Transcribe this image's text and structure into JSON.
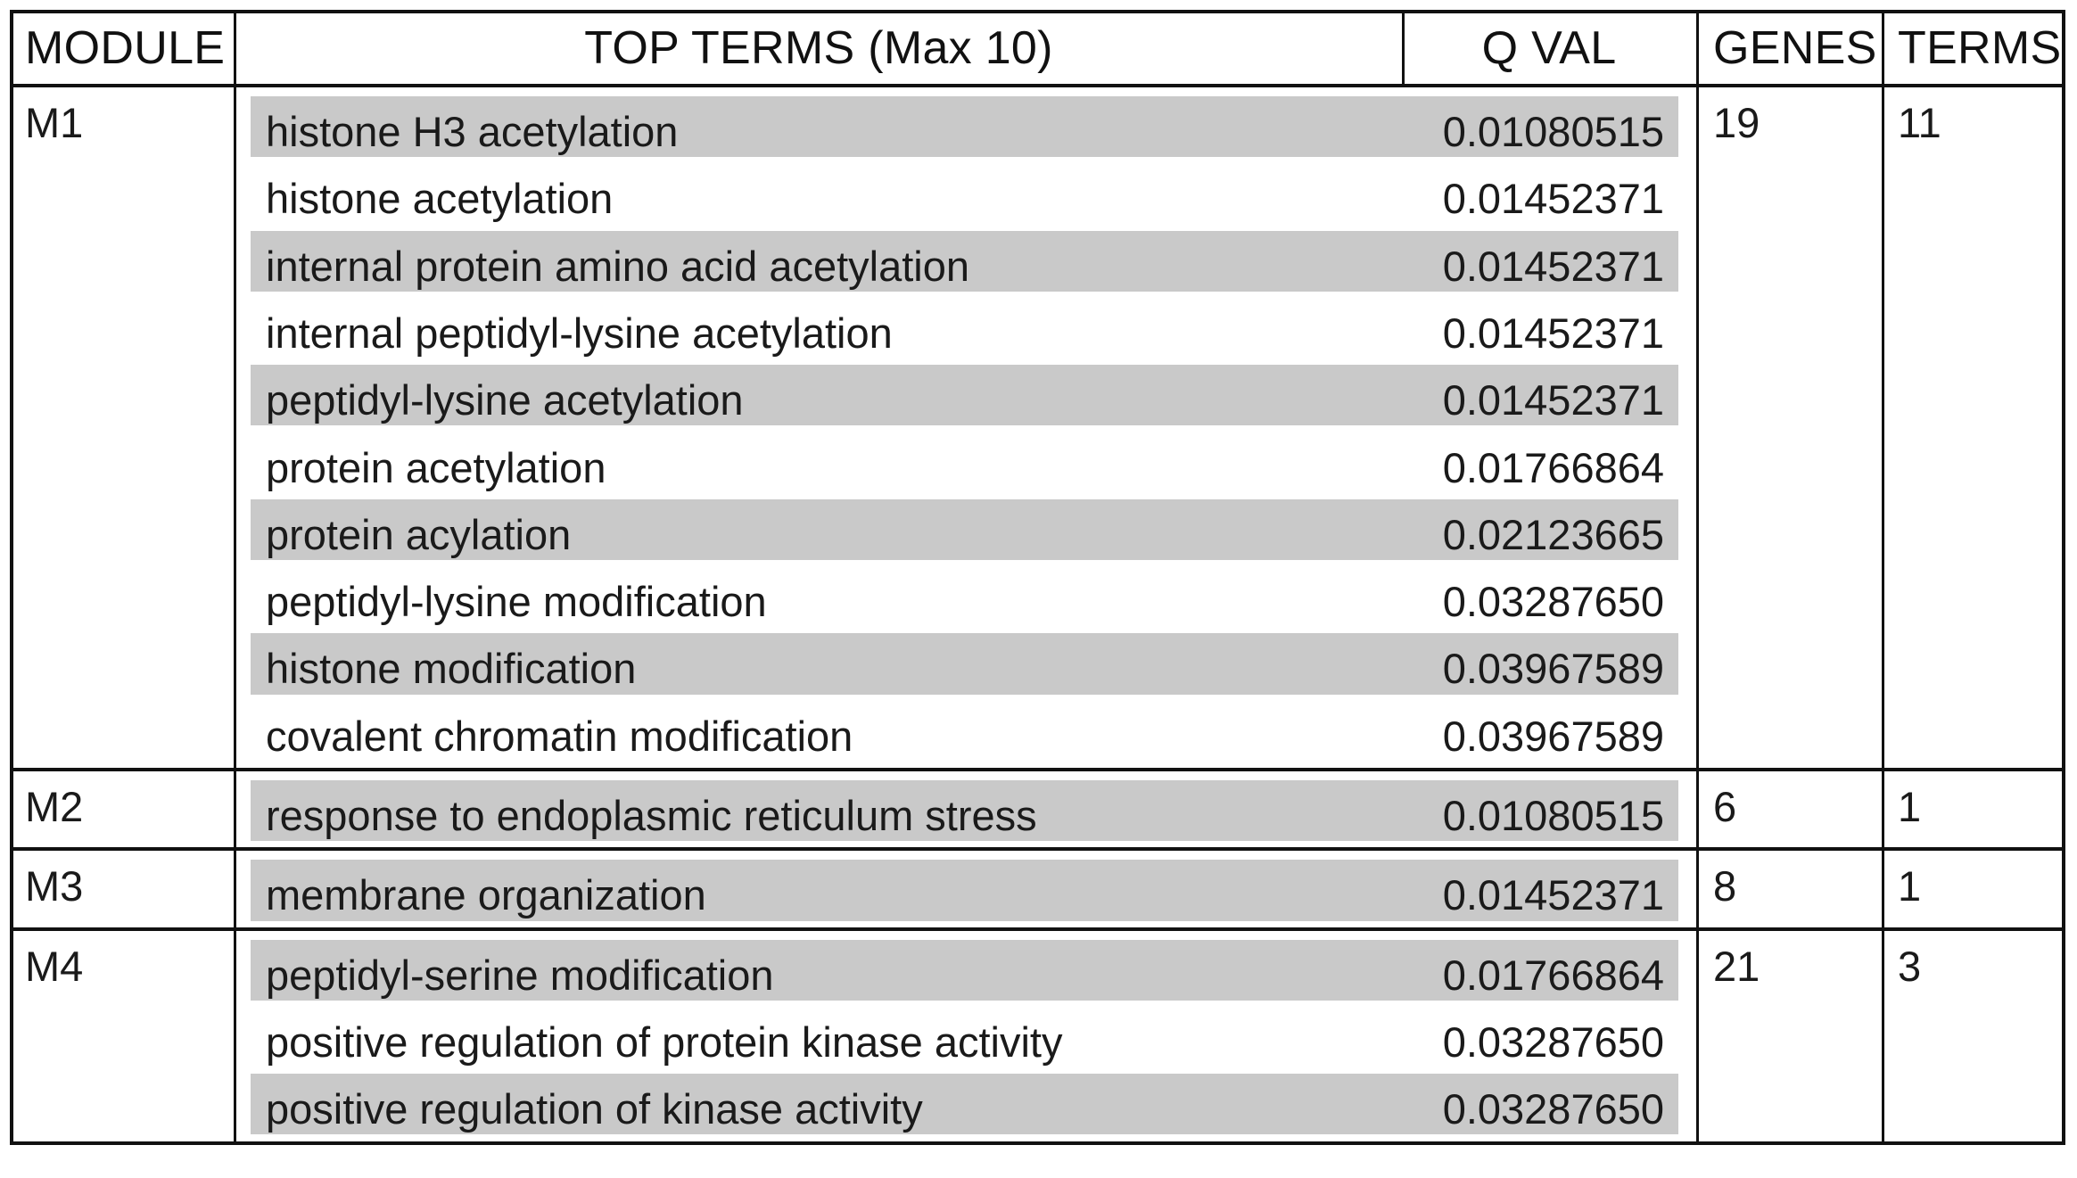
{
  "headers": {
    "module": "MODULE",
    "top_terms": "TOP TERMS (Max 10)",
    "qval": "Q VAL",
    "genes": "GENES",
    "terms": "TERMS"
  },
  "modules": [
    {
      "id": "M1",
      "genes": "19",
      "term_count": "11",
      "rows": [
        {
          "term": "histone H3 acetylation",
          "qval": "0.01080515",
          "shaded": true
        },
        {
          "term": "histone acetylation",
          "qval": "0.01452371",
          "shaded": false
        },
        {
          "term": "internal protein amino acid acetylation",
          "qval": "0.01452371",
          "shaded": true
        },
        {
          "term": "internal peptidyl-lysine acetylation",
          "qval": "0.01452371",
          "shaded": false
        },
        {
          "term": "peptidyl-lysine acetylation",
          "qval": "0.01452371",
          "shaded": true
        },
        {
          "term": "protein acetylation",
          "qval": "0.01766864",
          "shaded": false
        },
        {
          "term": "protein acylation",
          "qval": "0.02123665",
          "shaded": true
        },
        {
          "term": "peptidyl-lysine modification",
          "qval": "0.03287650",
          "shaded": false
        },
        {
          "term": "histone modification",
          "qval": "0.03967589",
          "shaded": true
        },
        {
          "term": "covalent chromatin modification",
          "qval": "0.03967589",
          "shaded": false
        }
      ]
    },
    {
      "id": "M2",
      "genes": "6",
      "term_count": "1",
      "rows": [
        {
          "term": "response to endoplasmic reticulum stress",
          "qval": "0.01080515",
          "shaded": true
        }
      ]
    },
    {
      "id": "M3",
      "genes": "8",
      "term_count": "1",
      "rows": [
        {
          "term": "membrane organization",
          "qval": "0.01452371",
          "shaded": true
        }
      ]
    },
    {
      "id": "M4",
      "genes": "21",
      "term_count": "3",
      "rows": [
        {
          "term": "peptidyl-serine modification",
          "qval": "0.01766864",
          "shaded": true
        },
        {
          "term": "positive regulation of protein kinase activity",
          "qval": "0.03287650",
          "shaded": false
        },
        {
          "term": "positive regulation of kinase activity",
          "qval": "0.03287650",
          "shaded": true
        }
      ]
    }
  ],
  "colors": {
    "border": "#111111",
    "row_shade": "#c9c9c9",
    "text": "#1a1a1a"
  }
}
